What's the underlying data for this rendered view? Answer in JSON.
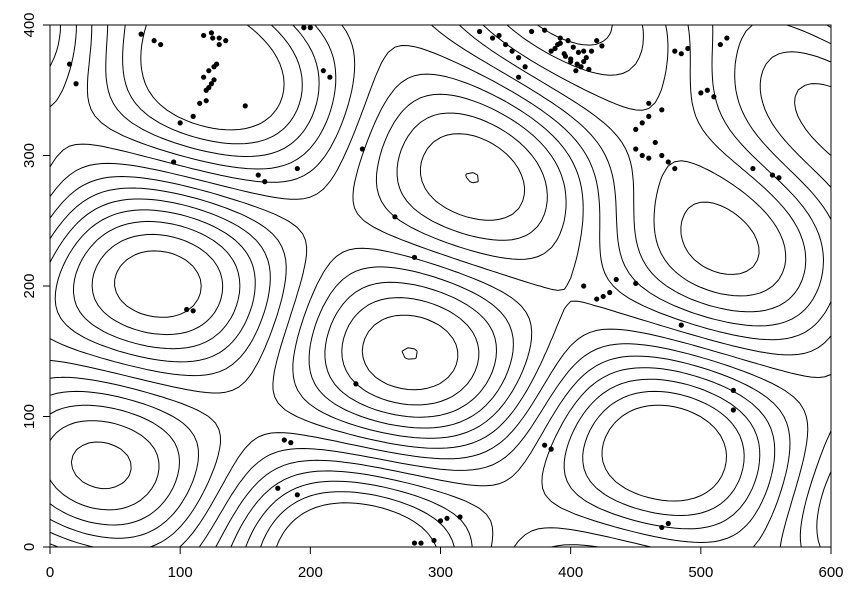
{
  "chart_data": {
    "type": "contour",
    "title": "",
    "xlabel": "",
    "ylabel": "",
    "xlim": [
      0,
      600
    ],
    "ylim": [
      0,
      400
    ],
    "x_ticks": [
      0,
      100,
      200,
      300,
      400,
      500,
      600
    ],
    "y_ticks": [
      0,
      100,
      200,
      300,
      400
    ],
    "grid": false,
    "legend": "none",
    "contour_color": "#000000",
    "point_color": "#000000",
    "contour_levels": [
      -1.4,
      -1.2,
      -1.0,
      -0.8,
      -0.6,
      -0.4,
      -0.2,
      0.0,
      0.2,
      0.4,
      0.6,
      0.8,
      1.0,
      1.2
    ],
    "points": {
      "x": [
        15,
        20,
        70,
        80,
        85,
        100,
        110,
        115,
        120,
        125,
        130,
        135,
        118,
        122,
        126,
        128,
        120,
        122,
        124,
        126,
        118,
        124,
        130,
        95,
        150,
        160,
        165,
        190,
        195,
        210,
        215,
        240,
        265,
        280,
        330,
        340,
        345,
        350,
        355,
        360,
        360,
        365,
        370,
        380,
        385,
        390,
        395,
        400,
        405,
        410,
        388,
        392,
        396,
        400,
        404,
        408,
        412,
        416,
        420,
        424,
        392,
        398,
        402,
        406,
        410,
        414,
        450,
        455,
        460,
        465,
        470,
        460,
        470,
        480,
        485,
        490,
        500,
        505,
        510,
        515,
        520,
        450,
        455,
        460,
        475,
        480,
        540,
        555,
        560,
        435,
        450,
        410,
        420,
        425,
        430,
        105,
        110,
        235,
        280,
        315,
        380,
        385,
        470,
        475,
        285,
        295,
        300,
        305,
        180,
        185,
        190,
        175,
        200,
        525,
        525,
        485
      ],
      "y": [
        370,
        355,
        393,
        388,
        385,
        325,
        330,
        340,
        342,
        390,
        385,
        388,
        360,
        365,
        368,
        370,
        350,
        352,
        355,
        358,
        392,
        394,
        390,
        295,
        338,
        285,
        280,
        290,
        398,
        365,
        360,
        305,
        253,
        222,
        395,
        390,
        392,
        385,
        380,
        375,
        360,
        368,
        395,
        396,
        380,
        385,
        378,
        372,
        370,
        380,
        382,
        386,
        376,
        374,
        365,
        368,
        375,
        380,
        388,
        384,
        390,
        388,
        383,
        379,
        372,
        366,
        320,
        325,
        330,
        310,
        300,
        340,
        335,
        380,
        378,
        382,
        348,
        350,
        345,
        385,
        390,
        305,
        300,
        298,
        295,
        290,
        290,
        285,
        283,
        205,
        202,
        200,
        190,
        192,
        195,
        182,
        181,
        125,
        3,
        23,
        78,
        75,
        15,
        18,
        3,
        5,
        20,
        22,
        82,
        80,
        40,
        45,
        398,
        120,
        105,
        170
      ]
    }
  }
}
